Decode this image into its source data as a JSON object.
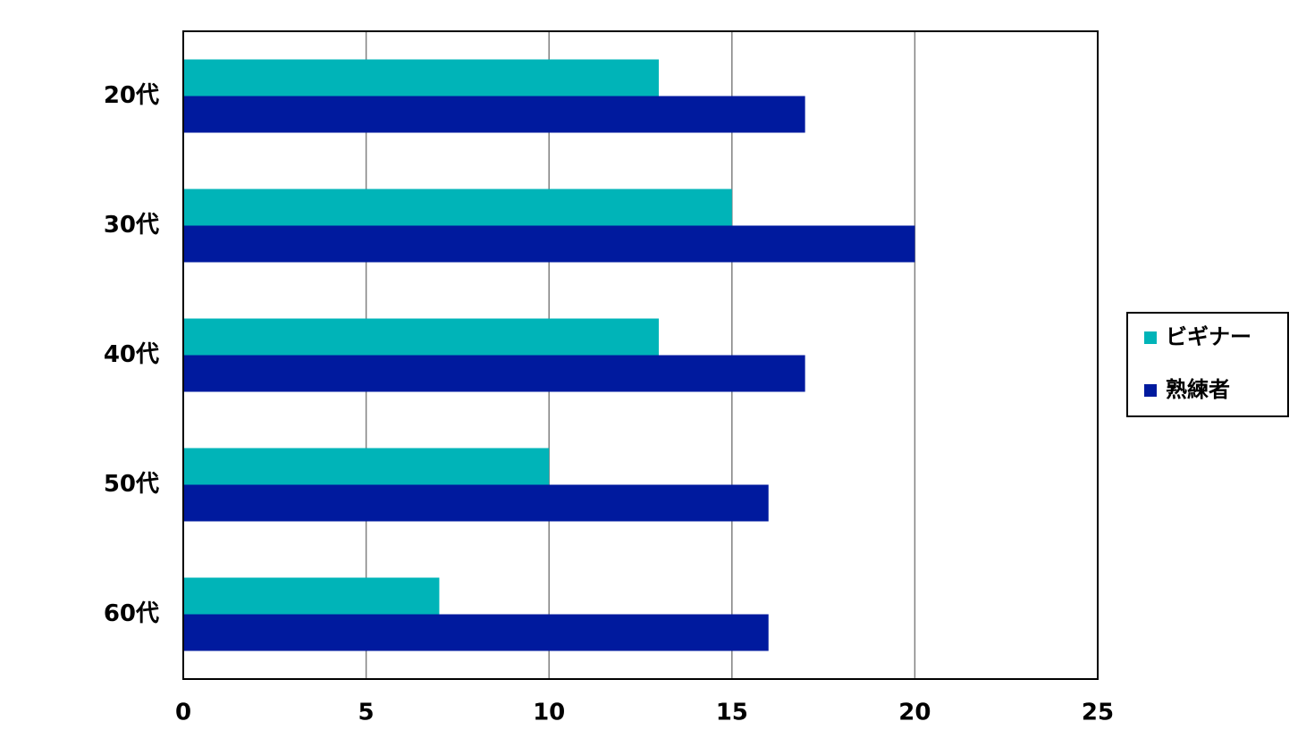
{
  "chart_data": {
    "type": "bar",
    "orientation": "horizontal",
    "categories": [
      "20代",
      "30代",
      "40代",
      "50代",
      "60代"
    ],
    "series": [
      {
        "name": "ビギナー",
        "color": "#00B4B8",
        "values": [
          13,
          15,
          13,
          10,
          7
        ]
      },
      {
        "name": "熟練者",
        "color": "#001A9E",
        "values": [
          17,
          20,
          17,
          16,
          16
        ]
      }
    ],
    "xlim": [
      0,
      25
    ],
    "xticks": [
      "0",
      "5",
      "10",
      "15",
      "20",
      "25"
    ],
    "grid": true,
    "legend_position": "right",
    "title": "",
    "xlabel": "",
    "ylabel": ""
  }
}
